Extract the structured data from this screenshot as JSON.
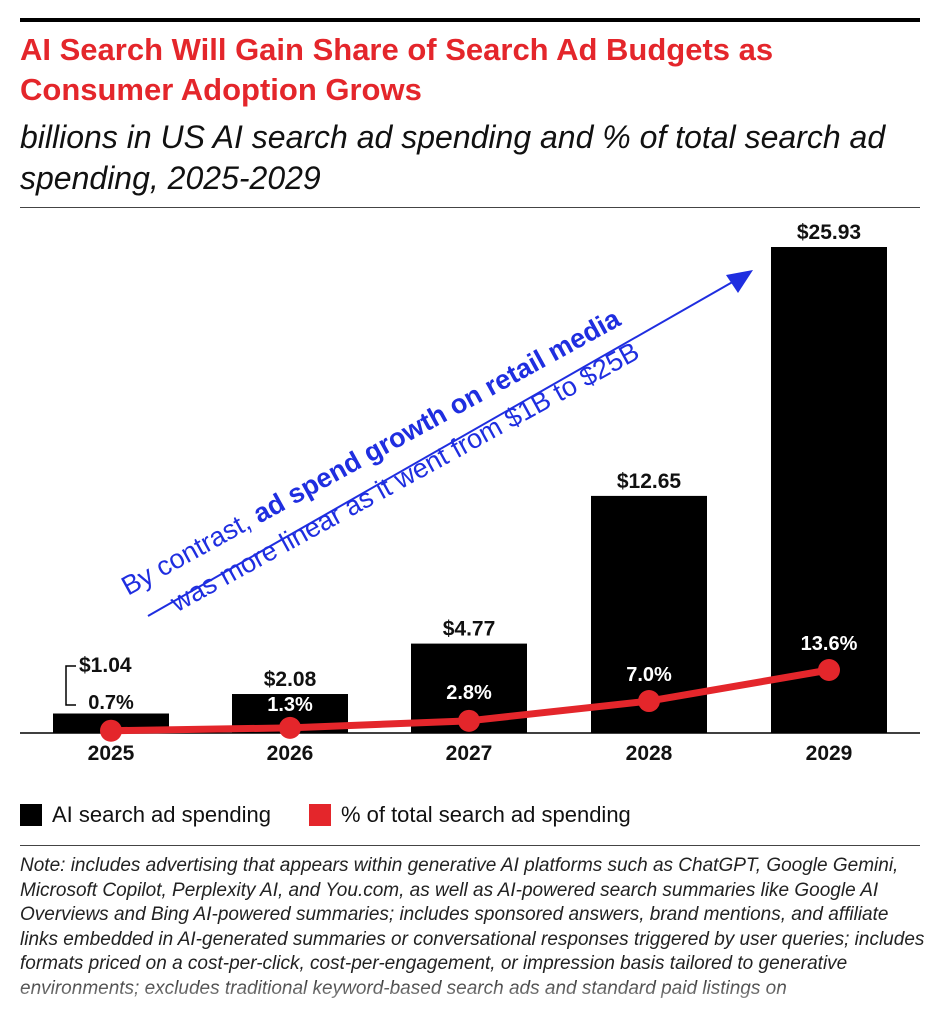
{
  "header": {
    "title": "AI Search Will Gain Share of Search Ad Budgets as Consumer Adoption Grows",
    "subtitle": "billions in US AI search ad spending and % of total search ad spending, 2025-2029"
  },
  "colors": {
    "accent": "#e4262b",
    "bar": "#000000",
    "annotation": "#1f2ee0"
  },
  "chart_data": {
    "type": "bar",
    "categories": [
      "2025",
      "2026",
      "2027",
      "2028",
      "2029"
    ],
    "series": [
      {
        "name": "AI search ad spending",
        "type": "bar",
        "values": [
          1.04,
          2.08,
          4.77,
          12.65,
          25.93
        ],
        "labels": [
          "$1.04",
          "$2.08",
          "$4.77",
          "$12.65",
          "$25.93"
        ]
      },
      {
        "name": "% of total search ad spending",
        "type": "line",
        "values": [
          0.7,
          1.3,
          2.8,
          7.0,
          13.6
        ],
        "labels": [
          "0.7%",
          "1.3%",
          "2.8%",
          "7.0%",
          "13.6%"
        ]
      }
    ],
    "annotation": {
      "prefix": "By contrast, ",
      "bold": "ad spend growth on retail media",
      "line2": "was more linear as it went from $1B to $25B"
    },
    "legend": "bottom-left",
    "grid": false
  },
  "note": "Note: includes advertising that appears within generative AI platforms such as ChatGPT, Google Gemini, Microsoft Copilot, Perplexity AI, and You.com, as well as AI-powered search summaries like Google AI Overviews and Bing AI-powered summaries; includes sponsored answers, brand mentions, and affiliate links embedded in AI-generated summaries or conversational responses triggered by user queries; includes formats priced on a cost-per-click, cost-per-engagement, or impression basis tailored to generative environments; excludes traditional keyword-based search ads and standard paid listings on"
}
